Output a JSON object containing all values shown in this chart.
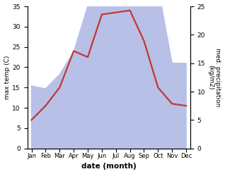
{
  "months": [
    "Jan",
    "Feb",
    "Mar",
    "Apr",
    "May",
    "Jun",
    "Jul",
    "Aug",
    "Sep",
    "Oct",
    "Nov",
    "Dec"
  ],
  "temperature": [
    7,
    10.5,
    15,
    24,
    22.5,
    33,
    33.5,
    34,
    26.5,
    15,
    11,
    10.5
  ],
  "precipitation": [
    11,
    10.5,
    13,
    17,
    25,
    33,
    33,
    33,
    29,
    28.5,
    15,
    15
  ],
  "temp_color": "#c0392b",
  "precip_fill_color": "#b8c0e8",
  "temp_ylim": [
    0,
    35
  ],
  "precip_ylim": [
    0,
    25
  ],
  "xlabel": "date (month)",
  "ylabel_left": "max temp (C)",
  "ylabel_right": "med. precipitation\n(kg/m2)",
  "temp_yticks": [
    0,
    5,
    10,
    15,
    20,
    25,
    30,
    35
  ],
  "precip_yticks": [
    0,
    5,
    10,
    15,
    20,
    25
  ],
  "bg_color": "#ffffff",
  "line_width": 1.6
}
